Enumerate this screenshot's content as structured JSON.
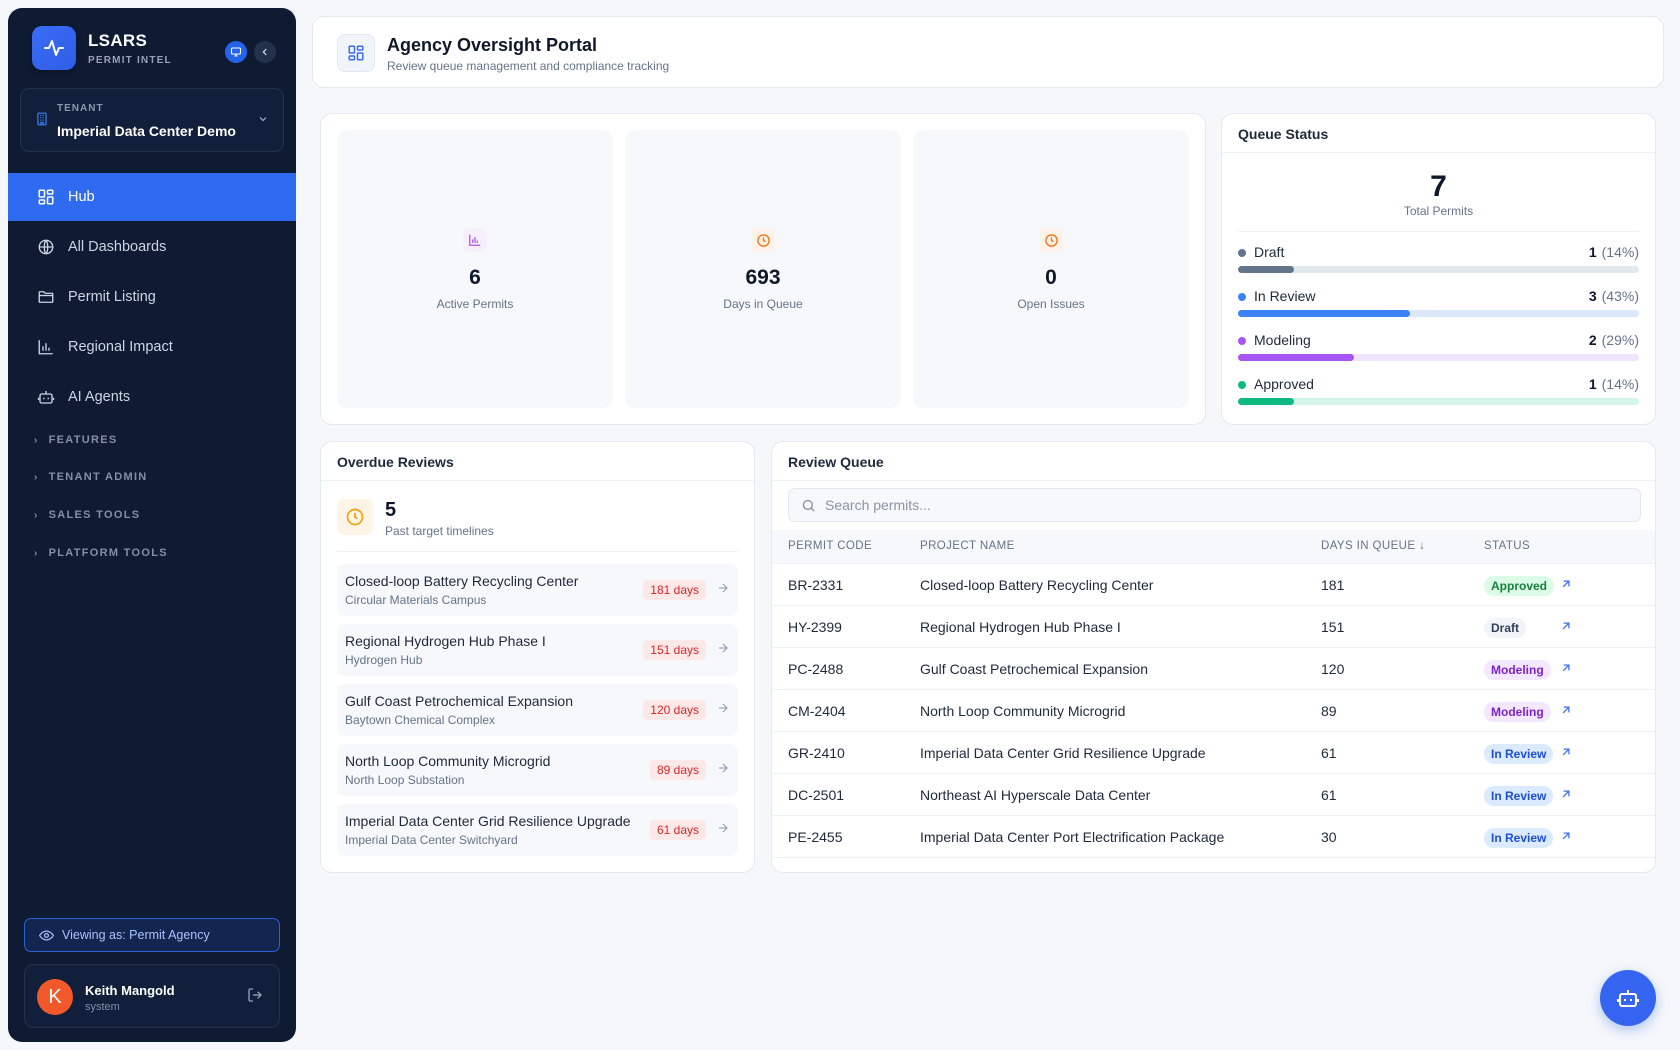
{
  "brand": {
    "name": "LSARS",
    "subtitle": "PERMIT INTEL"
  },
  "tenant": {
    "label": "TENANT",
    "name": "Imperial Data Center Demo"
  },
  "nav": {
    "items": [
      {
        "label": "Hub",
        "icon": "grid-icon",
        "active": true
      },
      {
        "label": "All Dashboards",
        "icon": "globe-icon"
      },
      {
        "label": "Permit Listing",
        "icon": "folder-icon"
      },
      {
        "label": "Regional Impact",
        "icon": "bar-chart-icon"
      },
      {
        "label": "AI Agents",
        "icon": "robot-icon"
      }
    ],
    "sections": [
      "FEATURES",
      "TENANT ADMIN",
      "SALES TOOLS",
      "PLATFORM TOOLS"
    ]
  },
  "viewing_as": "Viewing as: Permit Agency",
  "user": {
    "initial": "K",
    "name": "Keith Mangold",
    "role": "system"
  },
  "header": {
    "title": "Agency Oversight Portal",
    "subtitle": "Review queue management and compliance tracking"
  },
  "stats": [
    {
      "value": "6",
      "label": "Active Permits",
      "icon": "bar-chart-icon",
      "color": "#a855f7"
    },
    {
      "value": "693",
      "label": "Days in Queue",
      "icon": "clock-icon",
      "color": "#f97316"
    },
    {
      "value": "0",
      "label": "Open Issues",
      "icon": "clock-icon",
      "color": "#f97316"
    }
  ],
  "queue_status": {
    "title": "Queue Status",
    "total": "7",
    "total_label": "Total Permits",
    "rows": [
      {
        "name": "Draft",
        "count": "1",
        "pct": "(14%)",
        "fraction": 0.14,
        "color": "#64748b",
        "track": "#e2e8f0"
      },
      {
        "name": "In Review",
        "count": "3",
        "pct": "(43%)",
        "fraction": 0.43,
        "color": "#3b82f6",
        "track": "#dbe7fb"
      },
      {
        "name": "Modeling",
        "count": "2",
        "pct": "(29%)",
        "fraction": 0.29,
        "color": "#a855f7",
        "track": "#f1e4fd"
      },
      {
        "name": "Approved",
        "count": "1",
        "pct": "(14%)",
        "fraction": 0.14,
        "color": "#10b981",
        "track": "#d5f5e8"
      }
    ]
  },
  "overdue": {
    "title": "Overdue Reviews",
    "count": "5",
    "count_label": "Past target timelines",
    "items": [
      {
        "title": "Closed-loop Battery Recycling Center",
        "site": "Circular Materials Campus",
        "days": "181 days"
      },
      {
        "title": "Regional Hydrogen Hub Phase I",
        "site": "Hydrogen Hub",
        "days": "151 days"
      },
      {
        "title": "Gulf Coast Petrochemical Expansion",
        "site": "Baytown Chemical Complex",
        "days": "120 days"
      },
      {
        "title": "North Loop Community Microgrid",
        "site": "North Loop Substation",
        "days": "89 days"
      },
      {
        "title": "Imperial Data Center Grid Resilience Upgrade",
        "site": "Imperial Data Center Switchyard",
        "days": "61 days"
      }
    ]
  },
  "review_queue": {
    "title": "Review Queue",
    "search_placeholder": "Search permits...",
    "columns": [
      "PERMIT CODE",
      "PROJECT NAME",
      "DAYS IN QUEUE",
      "STATUS"
    ],
    "rows": [
      {
        "code": "BR-2331",
        "project": "Closed-loop Battery Recycling Center",
        "days": "181",
        "status": "Approved"
      },
      {
        "code": "HY-2399",
        "project": "Regional Hydrogen Hub Phase I",
        "days": "151",
        "status": "Draft"
      },
      {
        "code": "PC-2488",
        "project": "Gulf Coast Petrochemical Expansion",
        "days": "120",
        "status": "Modeling"
      },
      {
        "code": "CM-2404",
        "project": "North Loop Community Microgrid",
        "days": "89",
        "status": "Modeling"
      },
      {
        "code": "GR-2410",
        "project": "Imperial Data Center Grid Resilience Upgrade",
        "days": "61",
        "status": "In Review"
      },
      {
        "code": "DC-2501",
        "project": "Northeast AI Hyperscale Data Center",
        "days": "61",
        "status": "In Review"
      },
      {
        "code": "PE-2455",
        "project": "Imperial Data Center Port Electrification Package",
        "days": "30",
        "status": "In Review"
      }
    ]
  },
  "status_colors": {
    "Approved": {
      "bg": "#dcfce7",
      "fg": "#15803d"
    },
    "Draft": {
      "bg": "#f1f5f9",
      "fg": "#334155"
    },
    "Modeling": {
      "bg": "#f3e8ff",
      "fg": "#7e22ce"
    },
    "In Review": {
      "bg": "#dbeafe",
      "fg": "#1d4ed8"
    }
  }
}
